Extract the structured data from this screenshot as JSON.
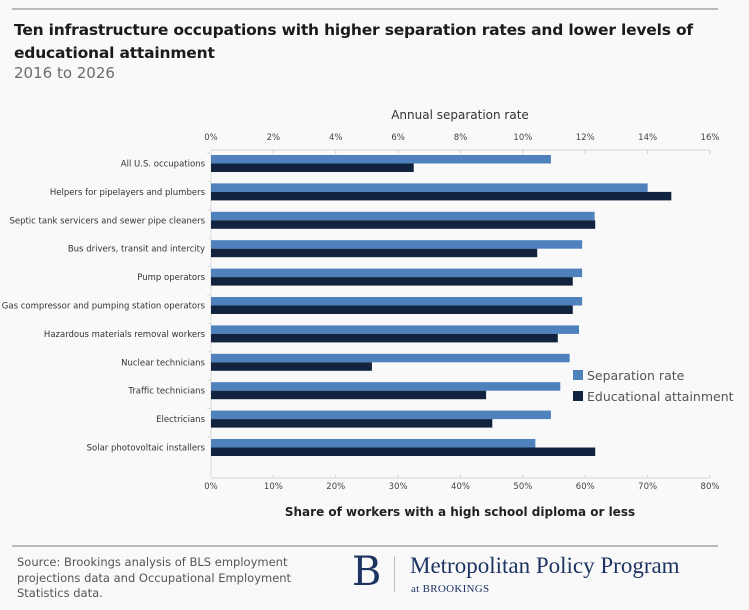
{
  "chart_data": {
    "type": "bar",
    "orientation": "horizontal",
    "title": "Ten infrastructure occupations with higher separation rates and lower levels of educational attainment",
    "subtitle": "2016 to 2026",
    "categories": [
      "All U.S. occupations",
      "Helpers for pipelayers and plumbers",
      "Septic tank servicers and sewer pipe cleaners",
      "Bus drivers, transit and intercity",
      "Pump operators",
      "Gas compressor and pumping station operators",
      "Hazardous materials removal workers",
      "Nuclear technicians",
      "Traffic technicians",
      "Electricians",
      "Solar photovoltaic installers"
    ],
    "series": [
      {
        "name": "Separation rate",
        "axis": "top",
        "color": "#4f81bd",
        "values": [
          10.9,
          14.0,
          12.3,
          11.9,
          11.9,
          11.9,
          11.8,
          11.5,
          11.2,
          10.9,
          10.4
        ]
      },
      {
        "name": "Educational attainment",
        "axis": "bottom",
        "color": "#12233f",
        "values": [
          32.5,
          73.8,
          61.6,
          52.3,
          58.0,
          58.0,
          55.6,
          25.8,
          44.1,
          45.1,
          61.6
        ]
      }
    ],
    "top_axis": {
      "label": "Annual separation rate",
      "range": [
        0,
        16
      ],
      "ticks": [
        "0%",
        "2%",
        "4%",
        "6%",
        "8%",
        "10%",
        "12%",
        "14%",
        "16%"
      ]
    },
    "bottom_axis": {
      "label": "Share of workers with a high school  diploma  or less",
      "range": [
        0,
        80
      ],
      "ticks": [
        "0%",
        "10%",
        "20%",
        "30%",
        "40%",
        "50%",
        "60%",
        "70%",
        "80%"
      ]
    },
    "legend": {
      "placement": "right-middle",
      "entries": [
        "Separation rate",
        "Educational attainment"
      ]
    },
    "grid": false
  },
  "footer": {
    "source": "Source: Brookings analysis of BLS employment projections data and Occupational Employment Statistics data.",
    "logo_letter": "B",
    "logo_name": "Metropolitan Policy Program",
    "logo_sub": "at BROOKINGS"
  }
}
